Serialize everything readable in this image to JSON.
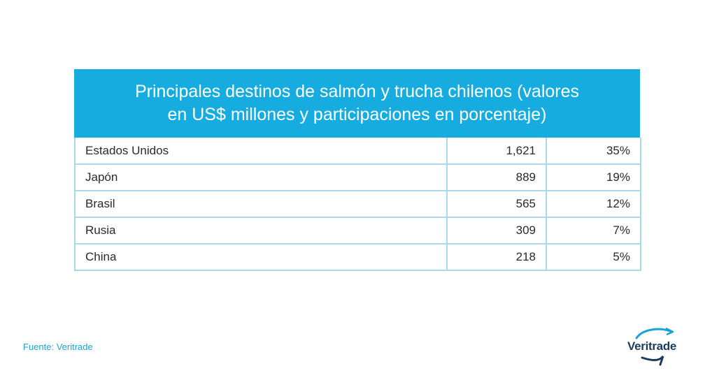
{
  "chart_data": {
    "type": "table",
    "title": "Principales destinos de salmón y trucha chilenos (valores en US$ millones y participaciones en porcentaje)",
    "title_lines": [
      "Principales destinos de salmón y trucha chilenos (valores",
      "en US$ millones y participaciones en porcentaje)"
    ],
    "rows": [
      {
        "country": "Estados Unidos",
        "value": "1,621",
        "share": "35%"
      },
      {
        "country": "Japón",
        "value": "889",
        "share": "19%"
      },
      {
        "country": "Brasil",
        "value": "565",
        "share": "12%"
      },
      {
        "country": "Rusia",
        "value": "309",
        "share": "7%"
      },
      {
        "country": "China",
        "value": "218",
        "share": "5%"
      }
    ]
  },
  "footer": {
    "source": "Fuente: Veritrade",
    "brand": "Veritrade"
  },
  "colors": {
    "header_bg": "#16ace0",
    "grid": "#a9d9ee",
    "source_text": "#1aa3d6",
    "brand_text": "#1d3b5a",
    "brand_swoosh": "#1aa3d6"
  }
}
